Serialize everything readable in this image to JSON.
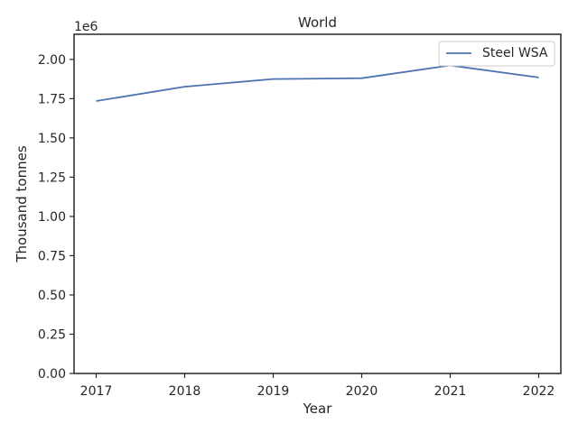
{
  "chart_data": {
    "type": "line",
    "title": "World",
    "xlabel": "Year",
    "ylabel": "Thousand tonnes",
    "offset_label": "1e6",
    "x": [
      2017,
      2018,
      2019,
      2020,
      2021,
      2022
    ],
    "xticks": [
      "2017",
      "2018",
      "2019",
      "2020",
      "2021",
      "2022"
    ],
    "yticks": [
      "0.00",
      "0.25",
      "0.50",
      "0.75",
      "1.00",
      "1.25",
      "1.50",
      "1.75",
      "2.00"
    ],
    "ylim": [
      0,
      2160000
    ],
    "series": [
      {
        "name": "Steel WSA",
        "color": "#4c72b0",
        "values": [
          1735000,
          1826000,
          1875000,
          1880000,
          1962000,
          1885000
        ]
      }
    ],
    "legend": {
      "placement": "top-right"
    },
    "grid": false
  }
}
